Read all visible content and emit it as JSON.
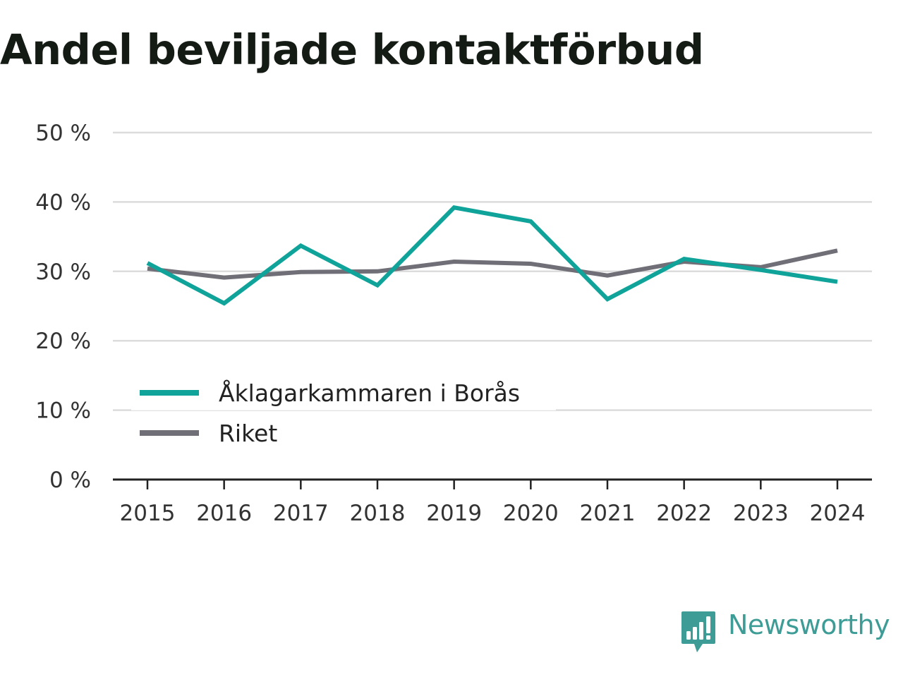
{
  "chart_data": {
    "type": "line",
    "title": "Andel beviljade kontaktförbud",
    "categories": [
      "2015",
      "2016",
      "2017",
      "2018",
      "2019",
      "2020",
      "2021",
      "2022",
      "2023",
      "2024"
    ],
    "series": [
      {
        "name": "Åklagarkammaren i Borås",
        "color": "#0fa39a",
        "values": [
          31.2,
          25.4,
          33.7,
          28.0,
          39.2,
          37.2,
          26.0,
          31.8,
          30.2,
          28.5
        ]
      },
      {
        "name": "Riket",
        "color": "#706f77",
        "values": [
          30.4,
          29.1,
          29.9,
          30.0,
          31.4,
          31.1,
          29.4,
          31.4,
          30.6,
          33.0
        ]
      }
    ],
    "ylim": [
      0,
      50
    ],
    "yticks": [
      {
        "value": 0,
        "label": "0 %"
      },
      {
        "value": 10,
        "label": "10 %"
      },
      {
        "value": 20,
        "label": "20 %"
      },
      {
        "value": 30,
        "label": "30 %"
      },
      {
        "value": 40,
        "label": "40 %"
      },
      {
        "value": 50,
        "label": "50 %"
      }
    ],
    "xlabel": "",
    "ylabel": "",
    "grid": true,
    "legend_position": "bottom-left"
  },
  "brand": {
    "name": "Newsworthy",
    "icon": "newsworthy-logo-icon",
    "color": "#3e9c96"
  }
}
